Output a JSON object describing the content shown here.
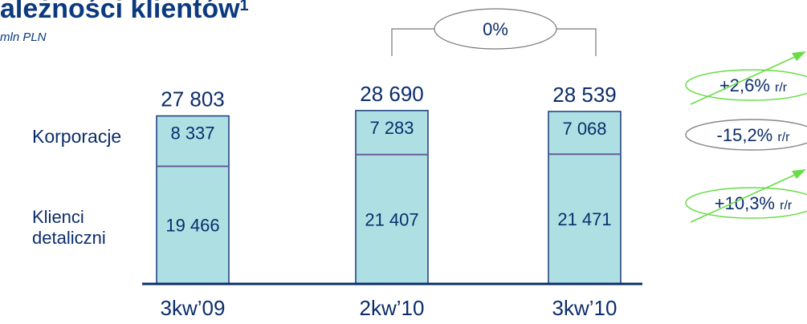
{
  "header": {
    "title": "ależności klientów",
    "title_sup": "1",
    "unit": "mln PLN"
  },
  "comparison_label": "0%",
  "row_labels": {
    "corporate": "Korporacje",
    "retail_line1": "Klienci",
    "retail_line2": "detaliczni"
  },
  "growth_badges": [
    {
      "value": "+2,6%",
      "suffix": "r/r",
      "ring_color": "#66dd44",
      "arrow": "up"
    },
    {
      "value": "-15,2%",
      "suffix": "r/r",
      "ring_color": "#888888",
      "arrow": "none"
    },
    {
      "value": "+10,3%",
      "suffix": "r/r",
      "ring_color": "#66dd44",
      "arrow": "up"
    }
  ],
  "chart_data": {
    "type": "bar",
    "stacked": true,
    "categories": [
      "3kw'09",
      "2kw'10",
      "3kw'10"
    ],
    "series": [
      {
        "name": "Klienci detaliczni",
        "values": [
          19466,
          21407,
          21471
        ],
        "labels": [
          "19 466",
          "21 407",
          "21 471"
        ]
      },
      {
        "name": "Korporacje",
        "values": [
          8337,
          7283,
          7068
        ],
        "labels": [
          "8 337",
          "7 283",
          "7 068"
        ]
      }
    ],
    "totals": [
      27803,
      28690,
      28539
    ],
    "total_labels": [
      "27 803",
      "28 690",
      "28 539"
    ],
    "tick_labels": [
      "3kw’09",
      "2kw’10",
      "3kw’10"
    ],
    "colors": {
      "bar_fill": "#aee0e3",
      "bar_stroke": "#1a3a7a",
      "divider": "#6a5a9a",
      "axis": "#0b2d6b"
    }
  }
}
